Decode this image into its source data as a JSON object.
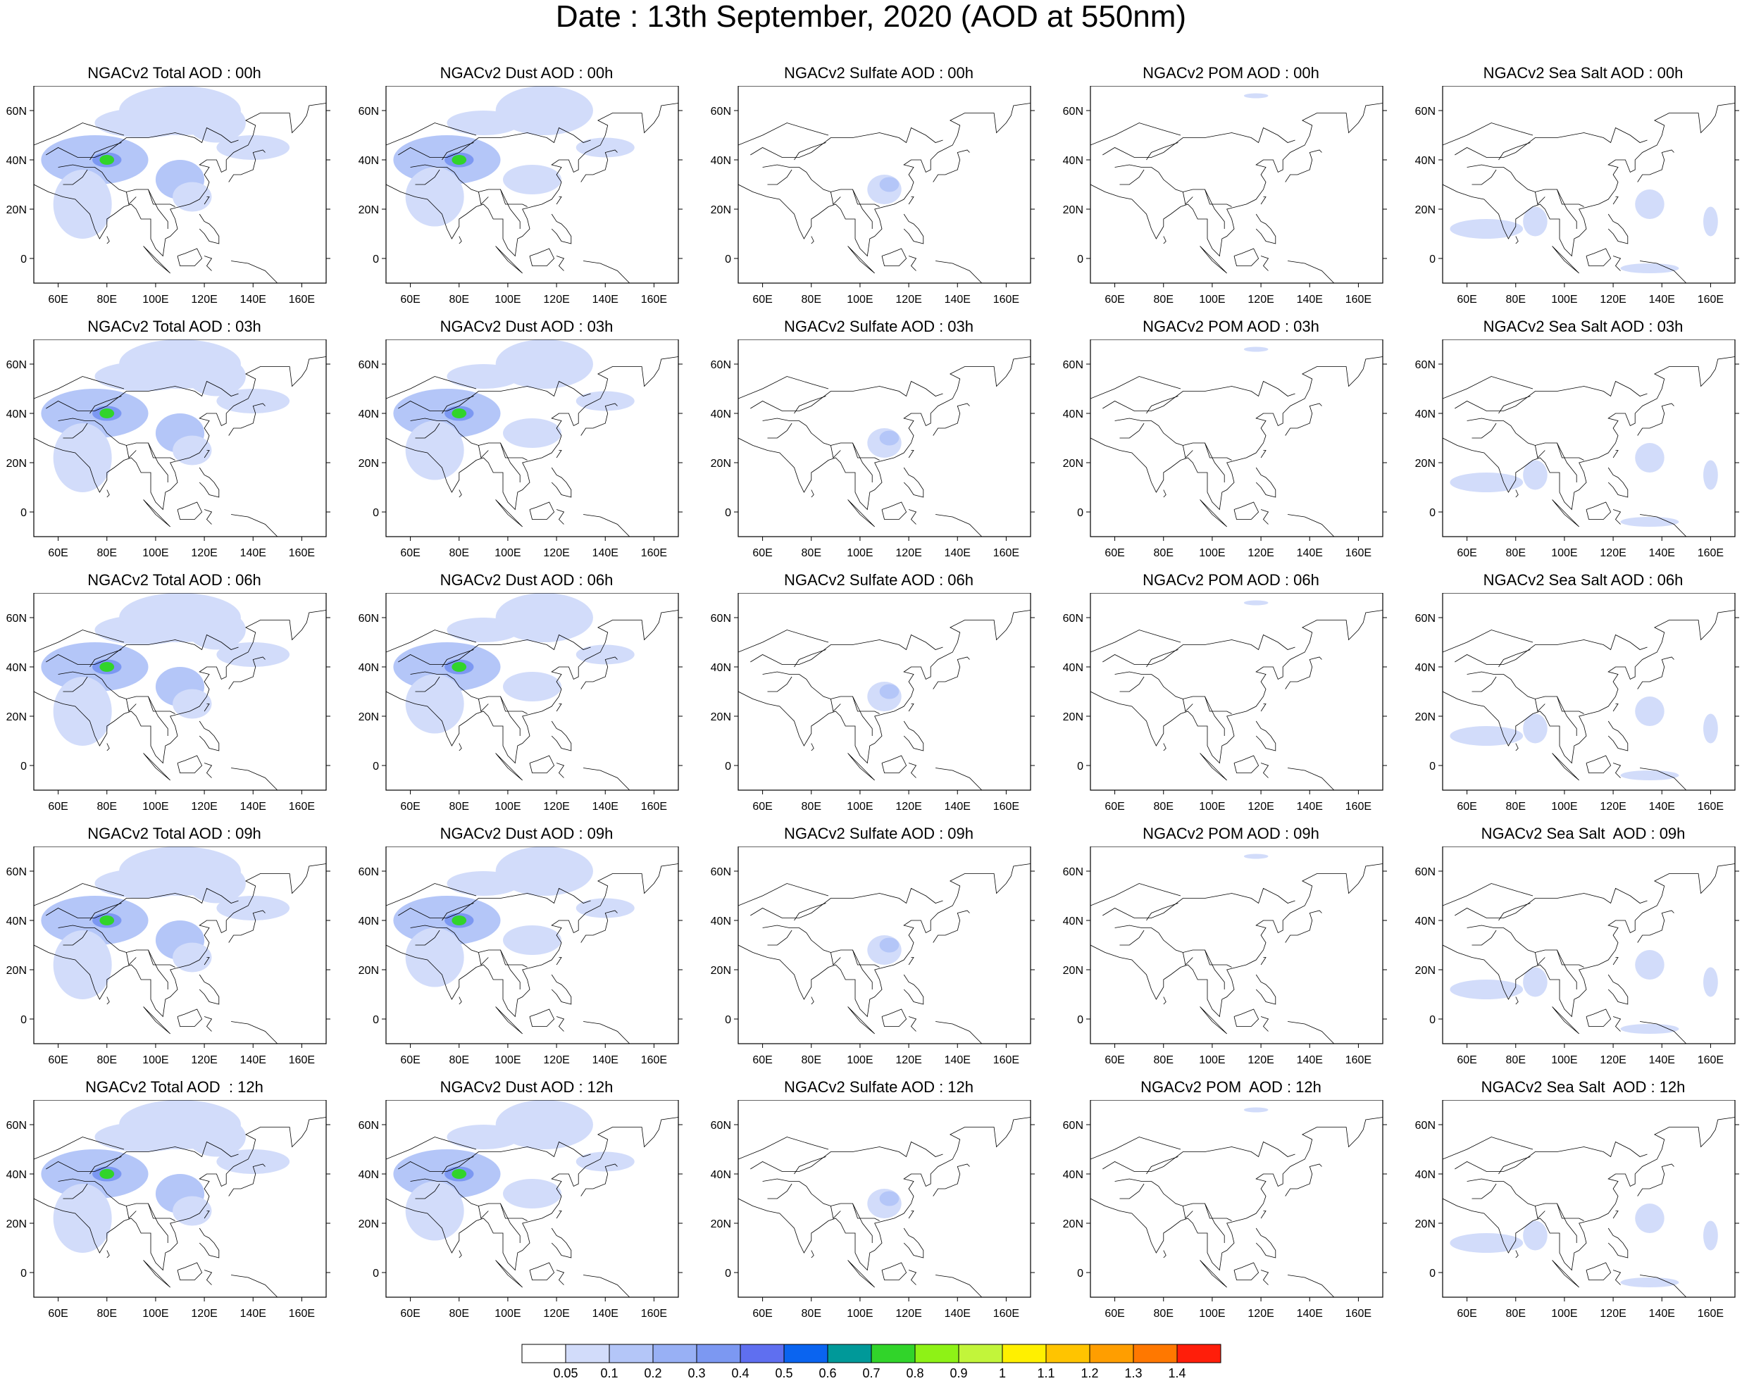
{
  "title": "Date : 13th September, 2020 (AOD at 550nm)",
  "panels": [
    [
      "NGACv2 Total AOD : 00h",
      "NGACv2 Dust AOD : 00h",
      "NGACv2 Sulfate AOD : 00h",
      "NGACv2 POM AOD : 00h",
      "NGACv2 Sea Salt AOD : 00h"
    ],
    [
      "NGACv2 Total AOD : 03h",
      "NGACv2 Dust AOD : 03h",
      "NGACv2 Sulfate AOD : 03h",
      "NGACv2 POM AOD : 03h",
      "NGACv2 Sea Salt AOD : 03h"
    ],
    [
      "NGACv2 Total AOD : 06h",
      "NGACv2 Dust AOD : 06h",
      "NGACv2 Sulfate AOD : 06h",
      "NGACv2 POM AOD : 06h",
      "NGACv2 Sea Salt AOD : 06h"
    ],
    [
      "NGACv2 Total AOD : 09h",
      "NGACv2 Dust AOD : 09h",
      "NGACv2 Sulfate AOD : 09h",
      "NGACv2 POM AOD : 09h",
      "NGACv2 Sea Salt  AOD : 09h"
    ],
    [
      "NGACv2 Total AOD  : 12h",
      "NGACv2 Dust AOD : 12h",
      "NGACv2 Sulfate AOD : 12h",
      "NGACv2 POM  AOD : 12h",
      "NGACv2 Sea Salt  AOD : 12h"
    ]
  ],
  "lat_ticks": [
    "60N",
    "40N",
    "20N",
    "0"
  ],
  "lon_ticks": [
    "60E",
    "80E",
    "100E",
    "120E",
    "140E",
    "160E"
  ],
  "colorbar": {
    "labels": [
      "0.05",
      "0.1",
      "0.2",
      "0.3",
      "0.4",
      "0.5",
      "0.6",
      "0.7",
      "0.8",
      "0.9",
      "1",
      "1.1",
      "1.2",
      "1.3",
      "1.4"
    ],
    "colors": [
      "#ffffff",
      "#d2dcfa",
      "#b4c6f8",
      "#98b0f5",
      "#7c98f2",
      "#5f6ff0",
      "#0a64f0",
      "#009999",
      "#31d42a",
      "#8ef216",
      "#c2f53a",
      "#fff000",
      "#ffc400",
      "#ff9e00",
      "#ff7800",
      "#ff1e0a"
    ]
  }
}
